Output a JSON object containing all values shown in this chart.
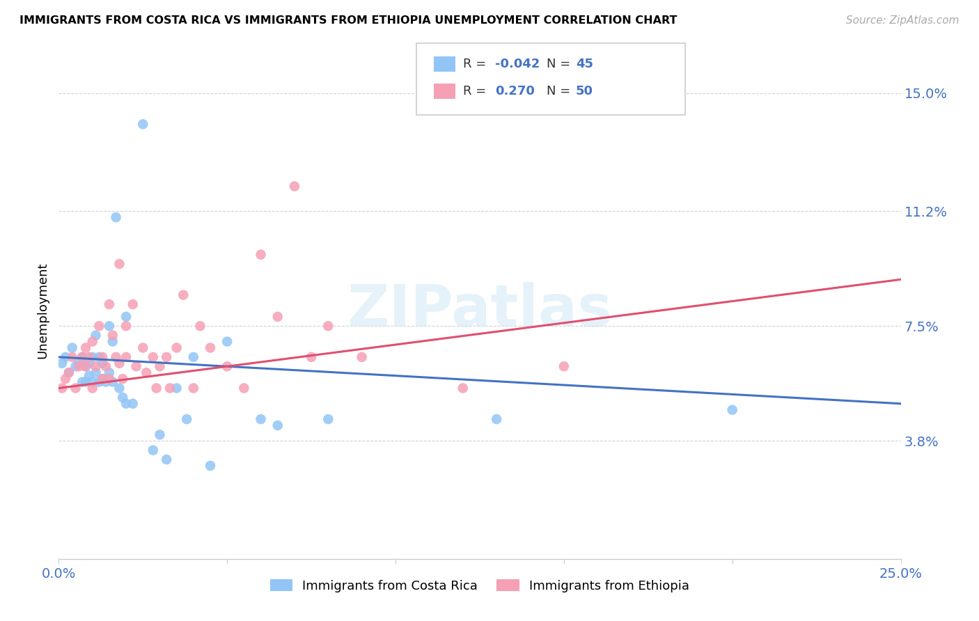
{
  "title": "IMMIGRANTS FROM COSTA RICA VS IMMIGRANTS FROM ETHIOPIA UNEMPLOYMENT CORRELATION CHART",
  "source": "Source: ZipAtlas.com",
  "ylabel": "Unemployment",
  "yticks": [
    "15.0%",
    "11.2%",
    "7.5%",
    "3.8%"
  ],
  "ytick_vals": [
    0.15,
    0.112,
    0.075,
    0.038
  ],
  "xlim": [
    0.0,
    0.25
  ],
  "ylim": [
    0.0,
    0.16
  ],
  "r_costa_rica": -0.042,
  "n_costa_rica": 45,
  "r_ethiopia": 0.27,
  "n_ethiopia": 50,
  "color_costa_rica": "#92c5f5",
  "color_ethiopia": "#f5a0b5",
  "color_line_blue": "#4472c4",
  "color_line_pink": "#e05070",
  "watermark": "ZIPatlas",
  "costa_rica_x": [
    0.001,
    0.002,
    0.003,
    0.004,
    0.005,
    0.006,
    0.007,
    0.007,
    0.008,
    0.008,
    0.009,
    0.009,
    0.01,
    0.01,
    0.011,
    0.011,
    0.012,
    0.012,
    0.013,
    0.013,
    0.014,
    0.015,
    0.015,
    0.016,
    0.016,
    0.017,
    0.018,
    0.019,
    0.02,
    0.02,
    0.022,
    0.025,
    0.028,
    0.03,
    0.032,
    0.035,
    0.038,
    0.04,
    0.045,
    0.05,
    0.06,
    0.065,
    0.08,
    0.13,
    0.2
  ],
  "costa_rica_y": [
    0.063,
    0.065,
    0.06,
    0.068,
    0.062,
    0.063,
    0.057,
    0.065,
    0.057,
    0.062,
    0.059,
    0.063,
    0.057,
    0.065,
    0.06,
    0.072,
    0.057,
    0.065,
    0.058,
    0.063,
    0.057,
    0.06,
    0.075,
    0.057,
    0.07,
    0.11,
    0.055,
    0.052,
    0.05,
    0.078,
    0.05,
    0.14,
    0.035,
    0.04,
    0.032,
    0.055,
    0.045,
    0.065,
    0.03,
    0.07,
    0.045,
    0.043,
    0.045,
    0.045,
    0.048
  ],
  "ethiopia_x": [
    0.001,
    0.002,
    0.003,
    0.004,
    0.005,
    0.006,
    0.007,
    0.008,
    0.008,
    0.009,
    0.01,
    0.01,
    0.011,
    0.012,
    0.013,
    0.013,
    0.014,
    0.015,
    0.015,
    0.016,
    0.017,
    0.018,
    0.018,
    0.019,
    0.02,
    0.02,
    0.022,
    0.023,
    0.025,
    0.026,
    0.028,
    0.029,
    0.03,
    0.032,
    0.033,
    0.035,
    0.037,
    0.04,
    0.042,
    0.045,
    0.05,
    0.055,
    0.06,
    0.065,
    0.07,
    0.075,
    0.08,
    0.09,
    0.12,
    0.15
  ],
  "ethiopia_y": [
    0.055,
    0.058,
    0.06,
    0.065,
    0.055,
    0.062,
    0.065,
    0.062,
    0.068,
    0.065,
    0.07,
    0.055,
    0.062,
    0.075,
    0.058,
    0.065,
    0.062,
    0.082,
    0.058,
    0.072,
    0.065,
    0.063,
    0.095,
    0.058,
    0.075,
    0.065,
    0.082,
    0.062,
    0.068,
    0.06,
    0.065,
    0.055,
    0.062,
    0.065,
    0.055,
    0.068,
    0.085,
    0.055,
    0.075,
    0.068,
    0.062,
    0.055,
    0.098,
    0.078,
    0.12,
    0.065,
    0.075,
    0.065,
    0.055,
    0.062
  ]
}
